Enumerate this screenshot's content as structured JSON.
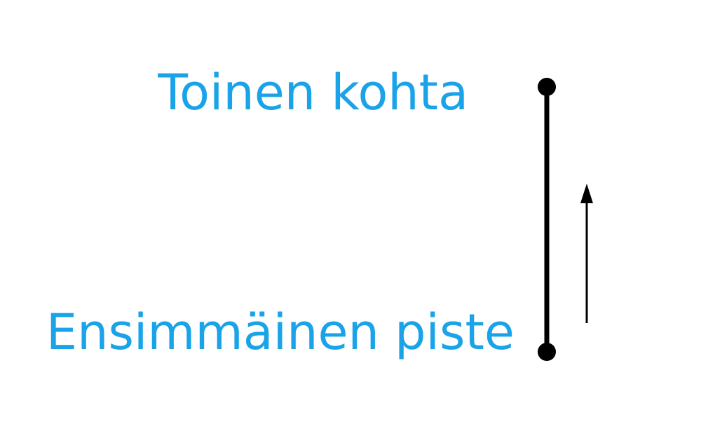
{
  "labels": {
    "second_point": "Toinen kohta",
    "first_point": "Ensimmäinen piste"
  },
  "colors": {
    "label_text": "#1aa3e8",
    "segment": "#000000",
    "arrow": "#000000",
    "background": "#ffffff"
  }
}
